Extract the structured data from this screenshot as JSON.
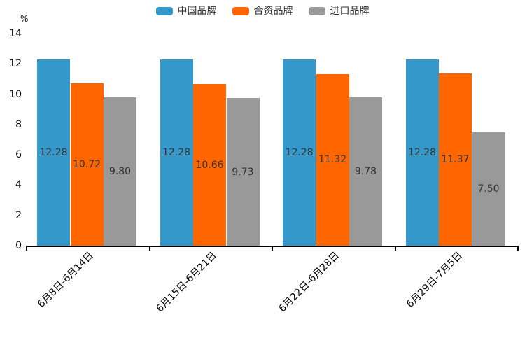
{
  "chart_data": {
    "type": "bar",
    "title": "",
    "unit_label": "%",
    "categories": [
      "6月8日-6月14日",
      "6月15日-6月21日",
      "6月22日-6月28日",
      "6月29日-7月5日"
    ],
    "series": [
      {
        "name": "中国品牌",
        "color": "#3498CB",
        "values": [
          12.28,
          12.28,
          12.28,
          12.28
        ]
      },
      {
        "name": "合资品牌",
        "color": "#FF6600",
        "values": [
          10.72,
          10.66,
          11.32,
          11.37
        ]
      },
      {
        "name": "进口品牌",
        "color": "#999999",
        "values": [
          9.8,
          9.73,
          9.78,
          7.5
        ]
      }
    ],
    "ylim": [
      0,
      14
    ],
    "ytick_step": 2,
    "grid": false,
    "legend_position": "top-center",
    "value_labels": "inside-center",
    "value_label_decimals": 2,
    "axis_color": "#000000",
    "value_label_color": "#333333"
  }
}
